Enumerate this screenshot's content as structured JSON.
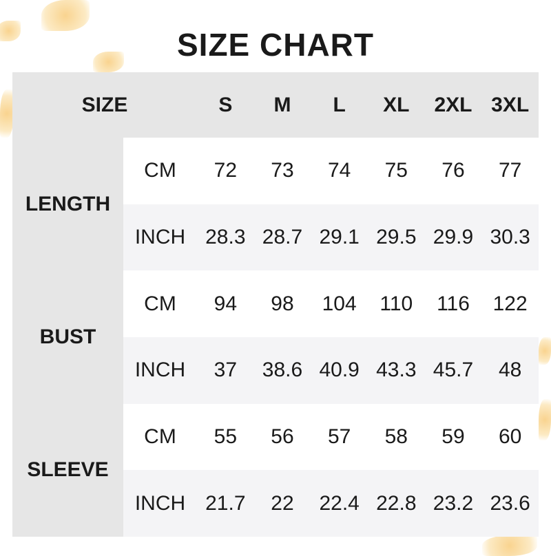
{
  "title": "SIZE CHART",
  "header": {
    "size_label": "SIZE",
    "sizes": [
      "S",
      "M",
      "L",
      "XL",
      "2XL",
      "3XL"
    ]
  },
  "measurements": [
    {
      "name": "LENGTH",
      "rows": [
        {
          "unit": "CM",
          "values": [
            "72",
            "73",
            "74",
            "75",
            "76",
            "77"
          ]
        },
        {
          "unit": "INCH",
          "values": [
            "28.3",
            "28.7",
            "29.1",
            "29.5",
            "29.9",
            "30.3"
          ]
        }
      ]
    },
    {
      "name": "BUST",
      "rows": [
        {
          "unit": "CM",
          "values": [
            "94",
            "98",
            "104",
            "110",
            "116",
            "122"
          ]
        },
        {
          "unit": "INCH",
          "values": [
            "37",
            "38.6",
            "40.9",
            "43.3",
            "45.7",
            "48"
          ]
        }
      ]
    },
    {
      "name": "SLEEVE",
      "rows": [
        {
          "unit": "CM",
          "values": [
            "55",
            "56",
            "57",
            "58",
            "59",
            "60"
          ]
        },
        {
          "unit": "INCH",
          "values": [
            "21.7",
            "22",
            "22.4",
            "22.8",
            "23.2",
            "23.6"
          ]
        }
      ]
    }
  ],
  "colors": {
    "header_bg": "#e6e6e6",
    "alt_row_bg": "#f4f4f6",
    "leaf": "#f7c56a"
  }
}
